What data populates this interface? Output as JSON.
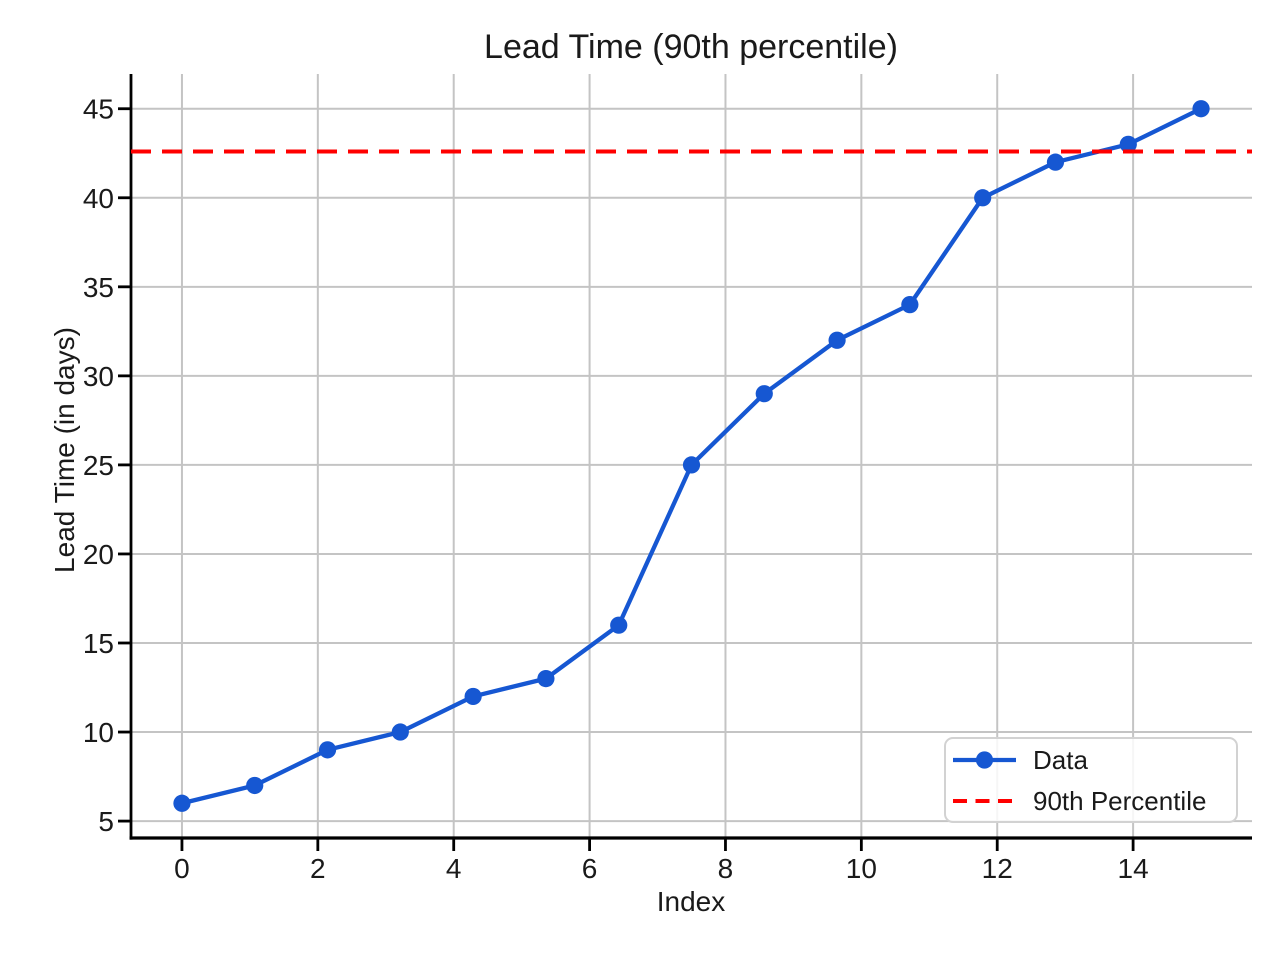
{
  "chart_data": {
    "type": "line",
    "title": "Lead Time (90th percentile)",
    "xlabel": "Index",
    "ylabel": "Lead Time (in days)",
    "x": [
      0,
      1.071,
      2.143,
      3.214,
      4.286,
      5.357,
      6.429,
      7.5,
      8.571,
      9.643,
      10.714,
      11.786,
      12.857,
      13.929,
      15
    ],
    "series": [
      {
        "name": "Data",
        "color": "#1657d2",
        "marker": "circle",
        "linestyle": "solid",
        "values": [
          6,
          7,
          9,
          10,
          12,
          13,
          16,
          25,
          29,
          32,
          34,
          40,
          42,
          43,
          45
        ]
      }
    ],
    "reference_line": {
      "label": "90th Percentile",
      "value": 42.6,
      "color": "#ff0000",
      "linestyle": "dashed"
    },
    "xticks": [
      0,
      2,
      4,
      6,
      8,
      10,
      12,
      14
    ],
    "yticks": [
      5,
      10,
      15,
      20,
      25,
      30,
      35,
      40,
      45
    ],
    "xlim": [
      -0.75,
      15.75
    ],
    "ylim": [
      4.05,
      46.95
    ],
    "grid": true,
    "grid_color": "#c4c4c4",
    "text_color": "#1a1a1a",
    "background_color": "#ffffff",
    "legend_position": "lower right",
    "legend_entries": [
      "Data",
      "90th Percentile"
    ]
  }
}
